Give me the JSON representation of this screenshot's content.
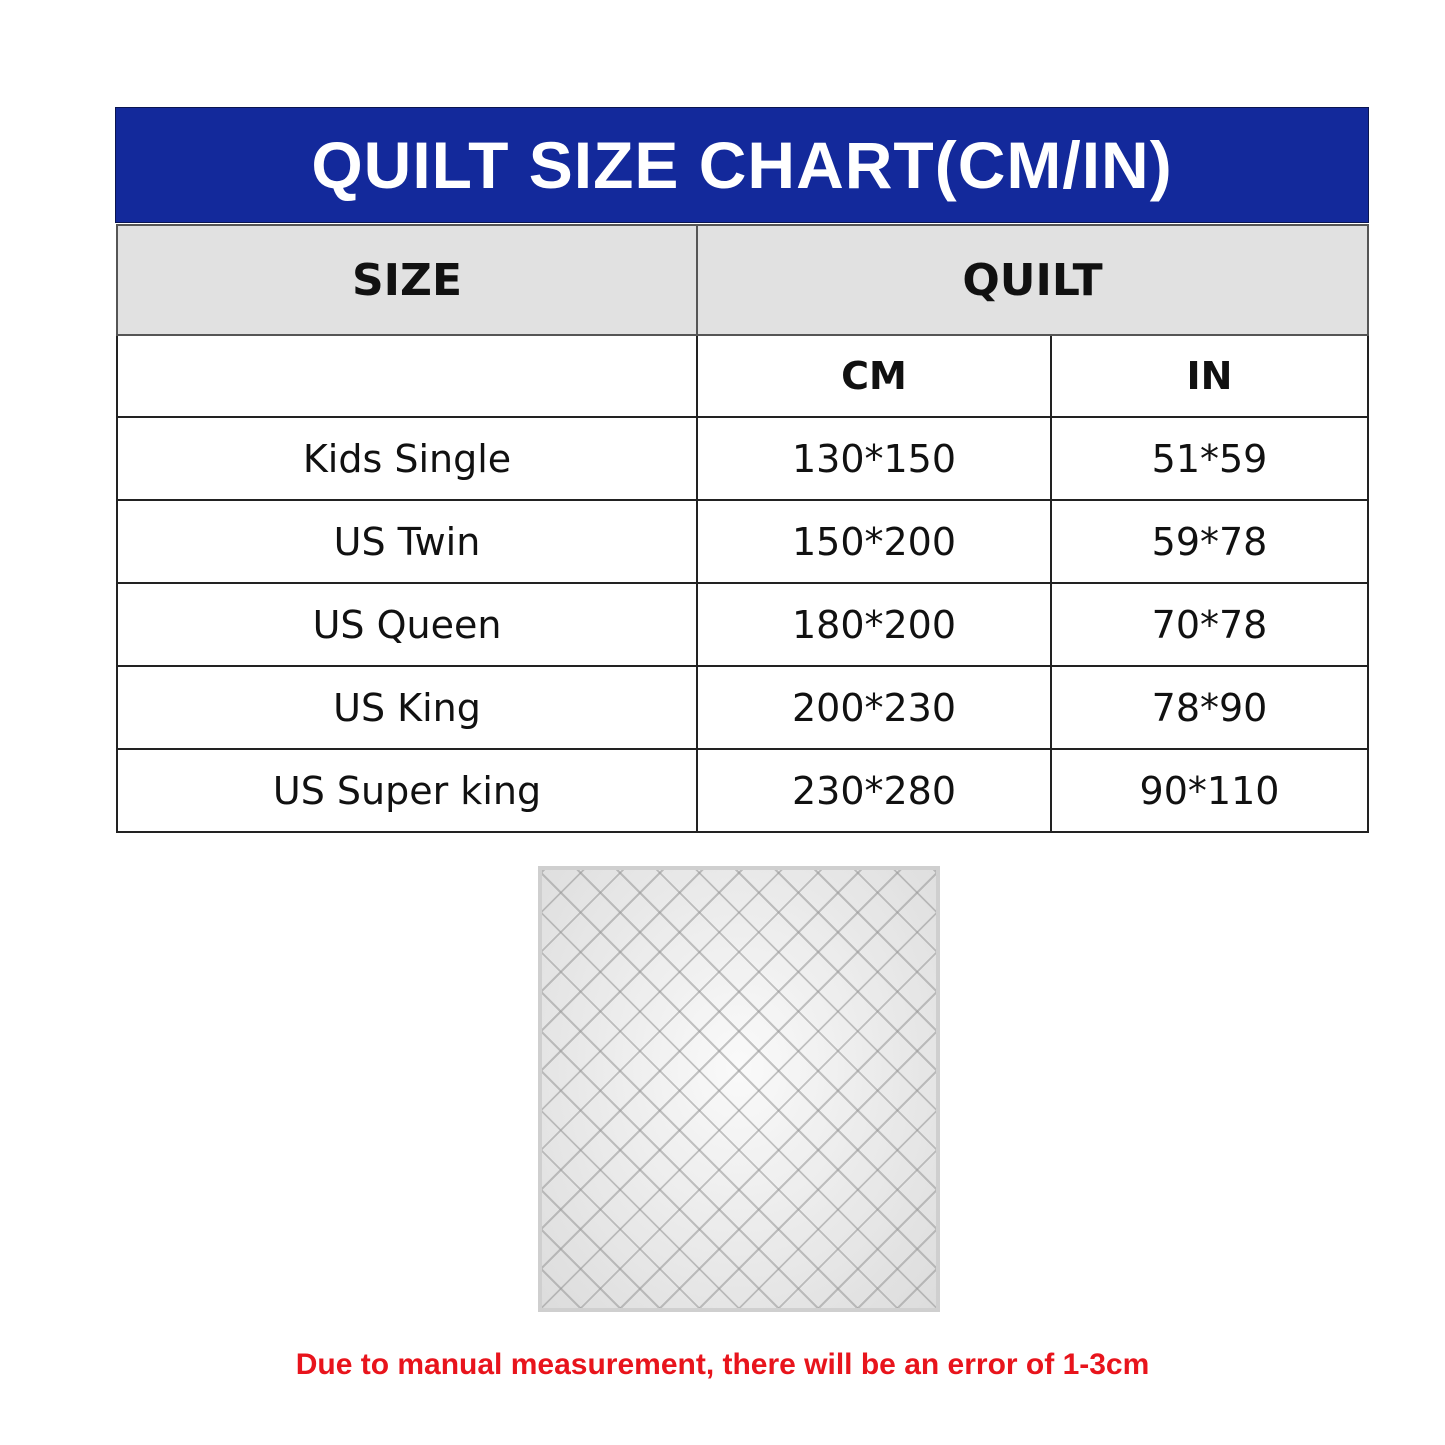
{
  "title": "QUILT SIZE CHART(CM/IN)",
  "table": {
    "header": {
      "size": "SIZE",
      "quilt": "QUILT"
    },
    "subheader": {
      "size": "",
      "cm": "CM",
      "in": "IN"
    },
    "rows": [
      {
        "size": "Kids Single",
        "cm": "130*150",
        "in": "51*59"
      },
      {
        "size": "US Twin",
        "cm": "150*200",
        "in": "59*78"
      },
      {
        "size": "US Queen",
        "cm": "180*200",
        "in": "70*78"
      },
      {
        "size": "US King",
        "cm": "200*230",
        "in": "78*90"
      },
      {
        "size": "US Super king",
        "cm": "230*280",
        "in": "90*110"
      }
    ]
  },
  "note": "Due to manual measurement, there will be an error of 1-3cm",
  "colors": {
    "title_bg": "#13299b",
    "header_bg": "#e1e1e1",
    "note": "#e8141c"
  }
}
